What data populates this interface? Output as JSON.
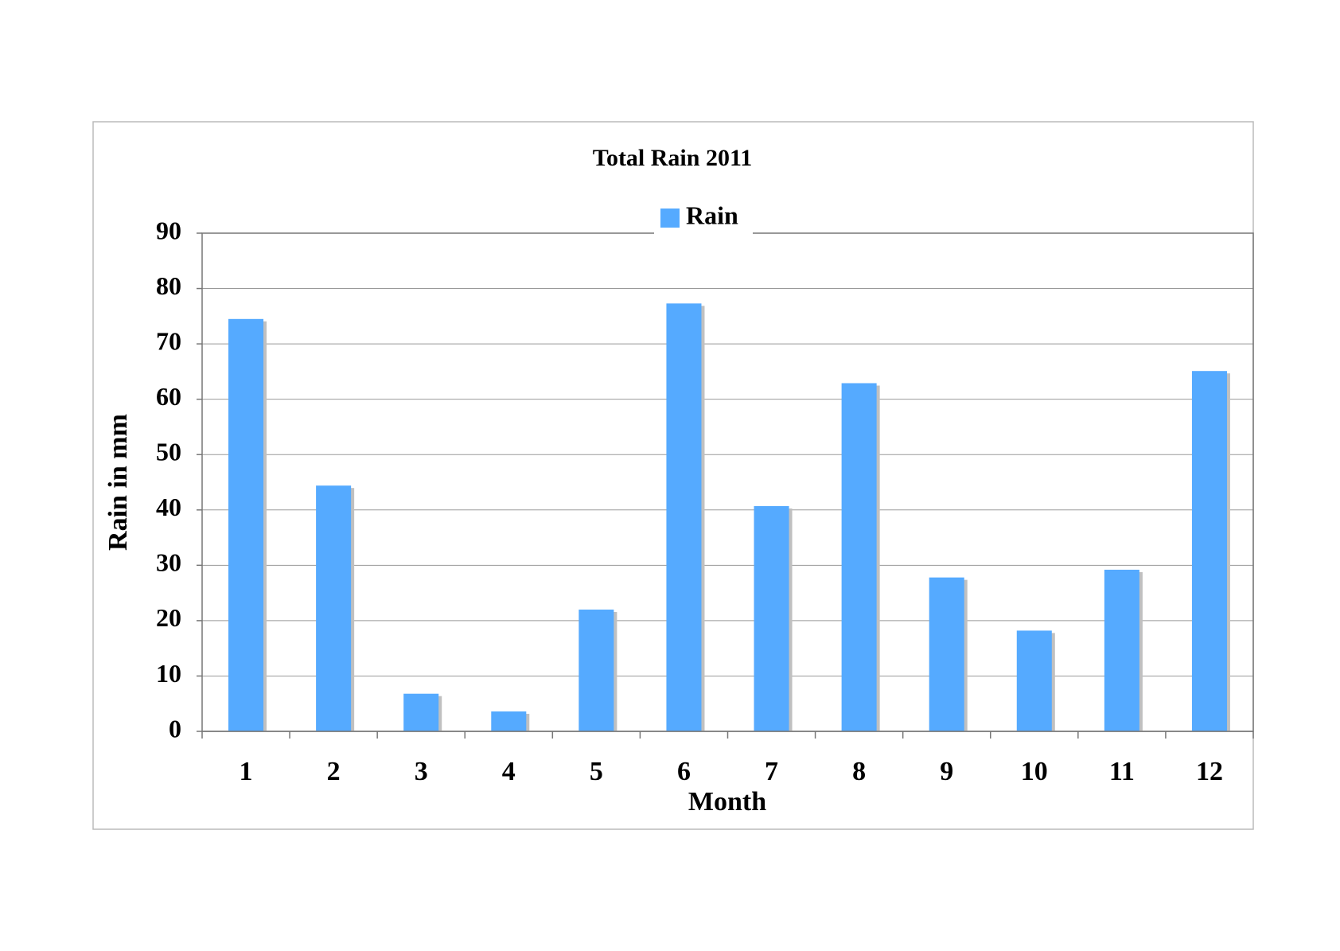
{
  "chart_data": {
    "type": "bar",
    "title": "Total Rain 2011",
    "x_label": "Month",
    "y_label": "Rain in mm",
    "categories": [
      "1",
      "2",
      "3",
      "4",
      "5",
      "6",
      "7",
      "8",
      "9",
      "10",
      "11",
      "12"
    ],
    "series": [
      {
        "name": "Rain",
        "color": "#55aaff",
        "values": [
          74.5,
          44.4,
          6.8,
          3.6,
          22.0,
          77.3,
          40.7,
          62.9,
          27.8,
          18.2,
          29.2,
          65.1
        ]
      }
    ],
    "ylim": [
      0,
      90
    ],
    "yticks": [
      0,
      10,
      20,
      30,
      40,
      50,
      60,
      70,
      80,
      90
    ],
    "grid": true,
    "legend": "top"
  }
}
